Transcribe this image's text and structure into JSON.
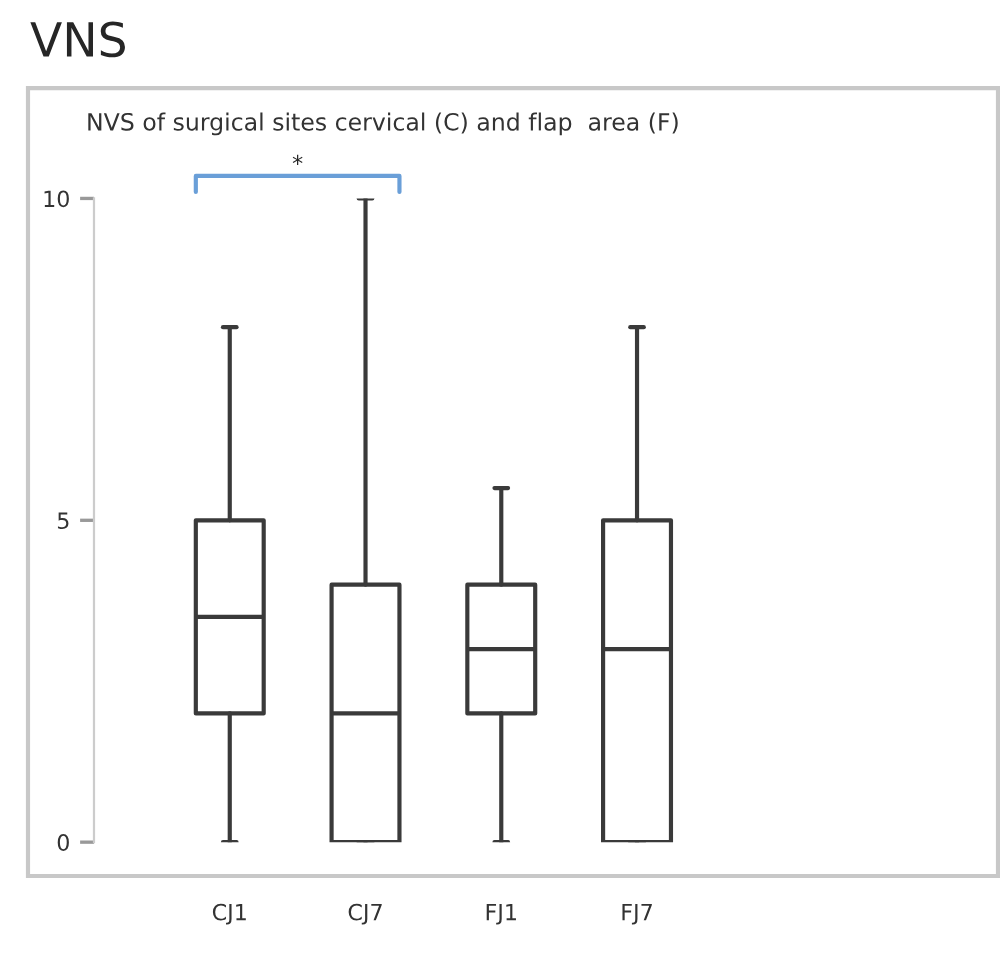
{
  "chart_data": {
    "type": "box",
    "title": "VNS",
    "subtitle": "NVS of surgical sites cervical (C) and flap  area (F)",
    "categories": [
      "CJ1",
      "CJ7",
      "FJ1",
      "FJ7"
    ],
    "boxes": [
      {
        "low": 0,
        "q1": 2,
        "median": 3.5,
        "q3": 5,
        "high": 8
      },
      {
        "low": 0,
        "q1": 0,
        "median": 2,
        "q3": 4,
        "high": 10
      },
      {
        "low": 0,
        "q1": 2,
        "median": 3,
        "q3": 4,
        "high": 5.5
      },
      {
        "low": 0,
        "q1": 0,
        "median": 3,
        "q3": 5,
        "high": 8
      }
    ],
    "ylim": [
      0,
      10
    ],
    "yticks": [
      0,
      5,
      10
    ],
    "annotations": [
      "*"
    ],
    "grid": false,
    "legend": false
  }
}
